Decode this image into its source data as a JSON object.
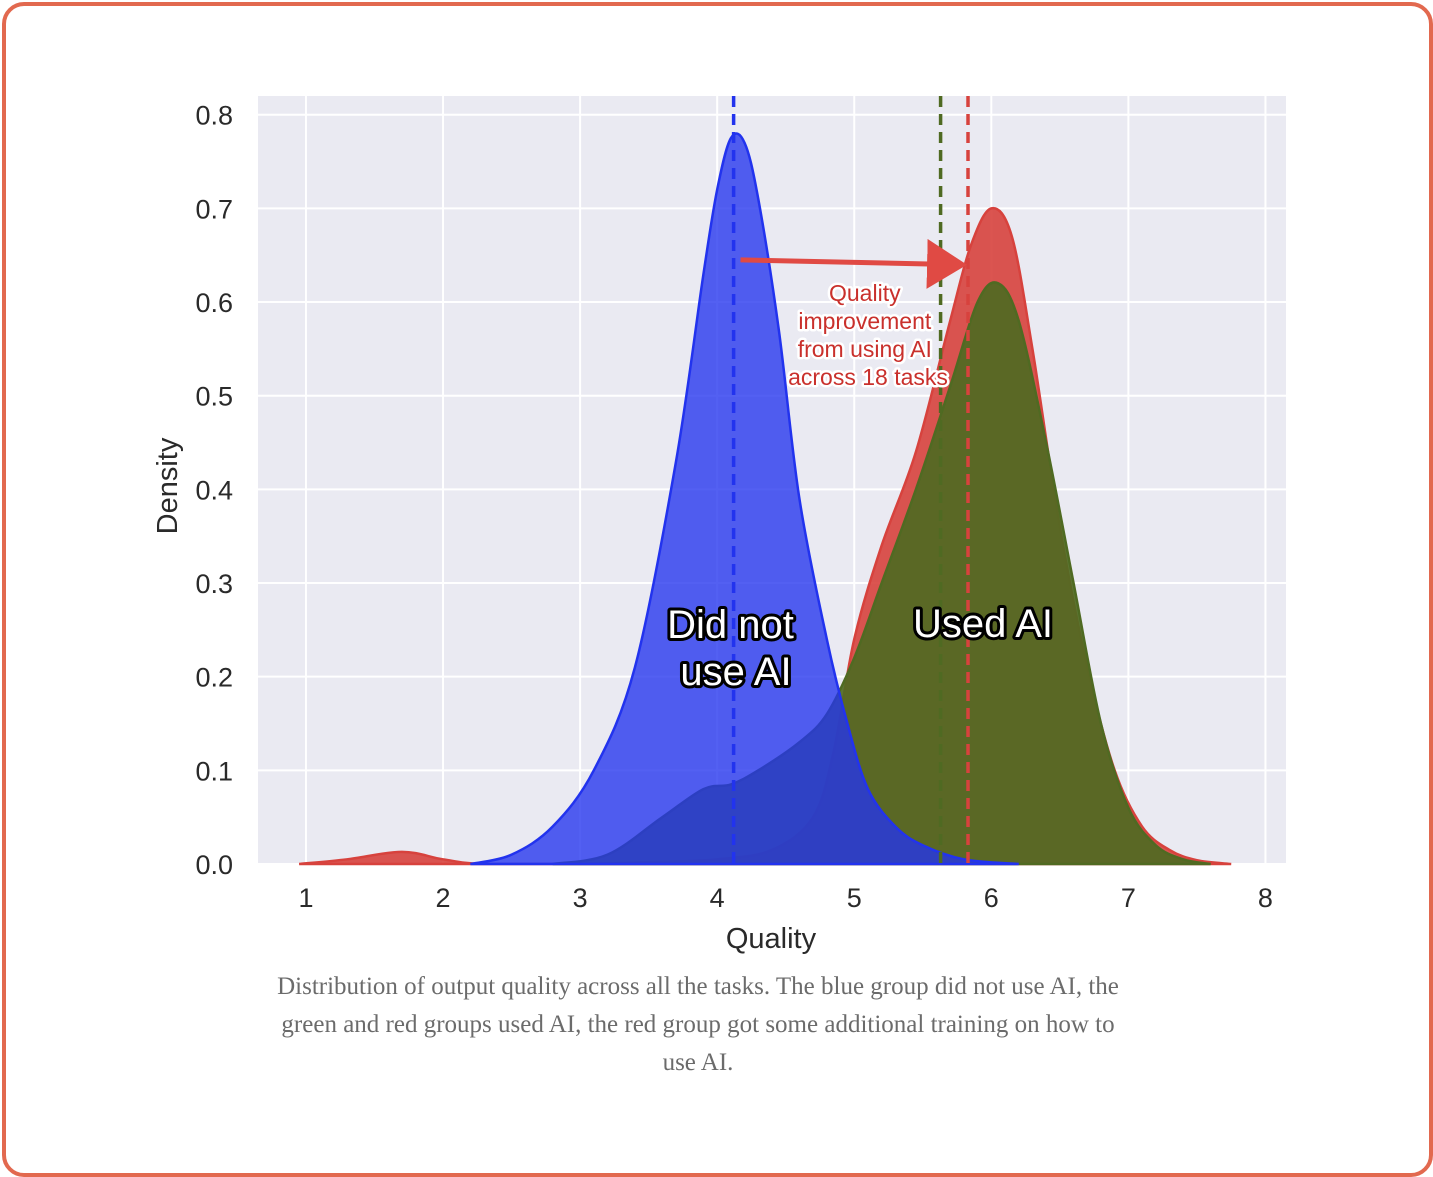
{
  "chart_data": {
    "type": "area",
    "xlabel": "Quality",
    "ylabel": "Density",
    "xlim": [
      0.65,
      8.15
    ],
    "ylim": [
      0,
      0.82
    ],
    "xticks": [
      "1",
      "2",
      "3",
      "4",
      "5",
      "6",
      "7",
      "8"
    ],
    "yticks": [
      "0.0",
      "0.1",
      "0.2",
      "0.3",
      "0.4",
      "0.5",
      "0.6",
      "0.7",
      "0.8"
    ],
    "grid": true,
    "colors": {
      "blue": "#2233ee",
      "green": "#4f6a22",
      "red": "#d7423d",
      "background": "#eaeaf2"
    },
    "series": [
      {
        "color": "blue",
        "points": [
          [
            2.2,
            0
          ],
          [
            2.5,
            0.01
          ],
          [
            2.8,
            0.04
          ],
          [
            3.1,
            0.1
          ],
          [
            3.4,
            0.21
          ],
          [
            3.7,
            0.43
          ],
          [
            3.9,
            0.63
          ],
          [
            4.0,
            0.72
          ],
          [
            4.1,
            0.775
          ],
          [
            4.2,
            0.77
          ],
          [
            4.3,
            0.71
          ],
          [
            4.45,
            0.57
          ],
          [
            4.6,
            0.39
          ],
          [
            4.8,
            0.24
          ],
          [
            4.95,
            0.15
          ],
          [
            5.1,
            0.08
          ],
          [
            5.3,
            0.04
          ],
          [
            5.5,
            0.02
          ],
          [
            5.8,
            0.005
          ],
          [
            6.2,
            0
          ]
        ]
      },
      {
        "color": "green",
        "points": [
          [
            2.8,
            0
          ],
          [
            3.2,
            0.01
          ],
          [
            3.6,
            0.05
          ],
          [
            3.9,
            0.08
          ],
          [
            4.1,
            0.085
          ],
          [
            4.3,
            0.1
          ],
          [
            4.6,
            0.13
          ],
          [
            4.8,
            0.16
          ],
          [
            5.0,
            0.22
          ],
          [
            5.2,
            0.3
          ],
          [
            5.45,
            0.4
          ],
          [
            5.7,
            0.51
          ],
          [
            5.9,
            0.6
          ],
          [
            6.05,
            0.62
          ],
          [
            6.2,
            0.58
          ],
          [
            6.4,
            0.45
          ],
          [
            6.6,
            0.3
          ],
          [
            6.8,
            0.15
          ],
          [
            7.0,
            0.06
          ],
          [
            7.2,
            0.02
          ],
          [
            7.4,
            0.005
          ],
          [
            7.6,
            0
          ]
        ]
      },
      {
        "color": "red",
        "points": [
          [
            0.95,
            0
          ],
          [
            1.3,
            0.005
          ],
          [
            1.7,
            0.013
          ],
          [
            2.0,
            0.005
          ],
          [
            2.3,
            0
          ],
          [
            3.0,
            0
          ],
          [
            3.5,
            0.002
          ],
          [
            4.0,
            0.005
          ],
          [
            4.4,
            0.015
          ],
          [
            4.7,
            0.05
          ],
          [
            4.85,
            0.12
          ],
          [
            5.0,
            0.24
          ],
          [
            5.2,
            0.34
          ],
          [
            5.45,
            0.44
          ],
          [
            5.7,
            0.58
          ],
          [
            5.85,
            0.66
          ],
          [
            6.0,
            0.7
          ],
          [
            6.15,
            0.67
          ],
          [
            6.3,
            0.55
          ],
          [
            6.5,
            0.36
          ],
          [
            6.7,
            0.21
          ],
          [
            6.9,
            0.1
          ],
          [
            7.1,
            0.04
          ],
          [
            7.3,
            0.015
          ],
          [
            7.5,
            0.004
          ],
          [
            7.75,
            0
          ]
        ]
      }
    ],
    "vlines": [
      {
        "x": 4.12,
        "color": "blue"
      },
      {
        "x": 5.63,
        "color": "green"
      },
      {
        "x": 5.83,
        "color": "red"
      }
    ],
    "annotations": {
      "blue_label": [
        "Did not",
        "use AI"
      ],
      "ai_label": "Used AI",
      "improvement_note": [
        "Quality",
        "improvement",
        "from using AI",
        "across 18 tasks"
      ]
    },
    "arrow": {
      "from": [
        4.17,
        0.645
      ],
      "to": [
        5.75,
        0.64
      ]
    }
  },
  "caption": {
    "lines": [
      "Distribution of output quality across all the tasks. The blue group did not use AI, the",
      "green and red groups used AI, the red group got some additional training on how to",
      "use AI."
    ]
  }
}
